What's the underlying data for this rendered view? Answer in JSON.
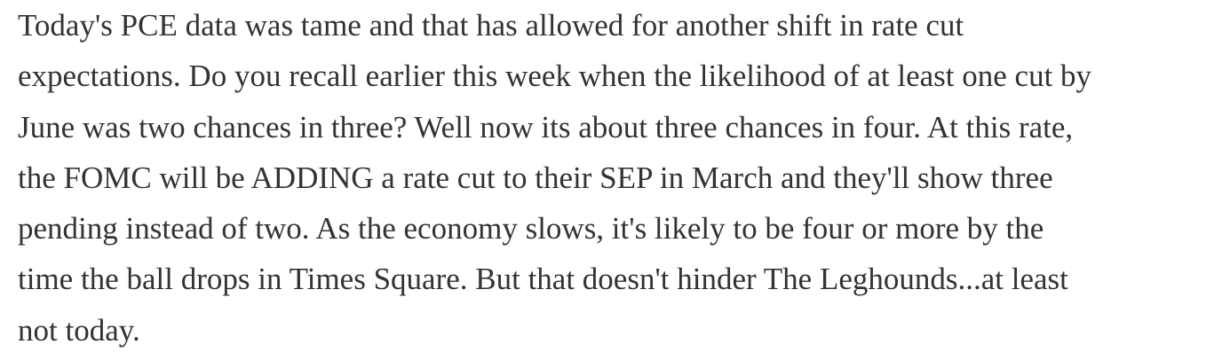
{
  "paragraph": {
    "lines": [
      "Today's PCE data was tame and that has allowed for another shift in rate cut",
      "expectations. Do you recall earlier this week when the likelihood of at least one cut by",
      "June was two chances in three? Well now its about three chances in four. At this rate,",
      "the FOMC will be ADDING a rate cut to their SEP in March and they'll show three",
      "pending instead of two. As the economy slows, it's likely to be four or more by the",
      "time the ball drops in Times Square. But that doesn't hinder The Leghounds...at least",
      "not today."
    ]
  }
}
